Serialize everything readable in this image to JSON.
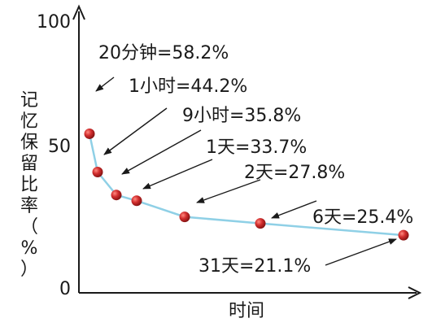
{
  "chart_data": {
    "type": "line",
    "ylabel": "记忆保留比率（%）",
    "xlabel": "时间",
    "ylim": [
      0,
      100
    ],
    "yticks": [
      "0",
      "50",
      "100"
    ],
    "series": [
      {
        "line_color": "#8fd0e6",
        "marker_color": "#c62828",
        "points": [
          {
            "t": "20分钟",
            "y": 58.2,
            "label": "20分钟=58.2%"
          },
          {
            "t": "1小时",
            "y": 44.2,
            "label": "1小时=44.2%"
          },
          {
            "t": "9小时",
            "y": 35.8,
            "label": "9小时=35.8%"
          },
          {
            "t": "1天",
            "y": 33.7,
            "label": "1天=33.7%"
          },
          {
            "t": "2天",
            "y": 27.8,
            "label": "2天=27.8%"
          },
          {
            "t": "6天",
            "y": 25.4,
            "label": "6天=25.4%"
          },
          {
            "t": "31天",
            "y": 21.1,
            "label": "31天=21.1%"
          }
        ]
      }
    ]
  }
}
